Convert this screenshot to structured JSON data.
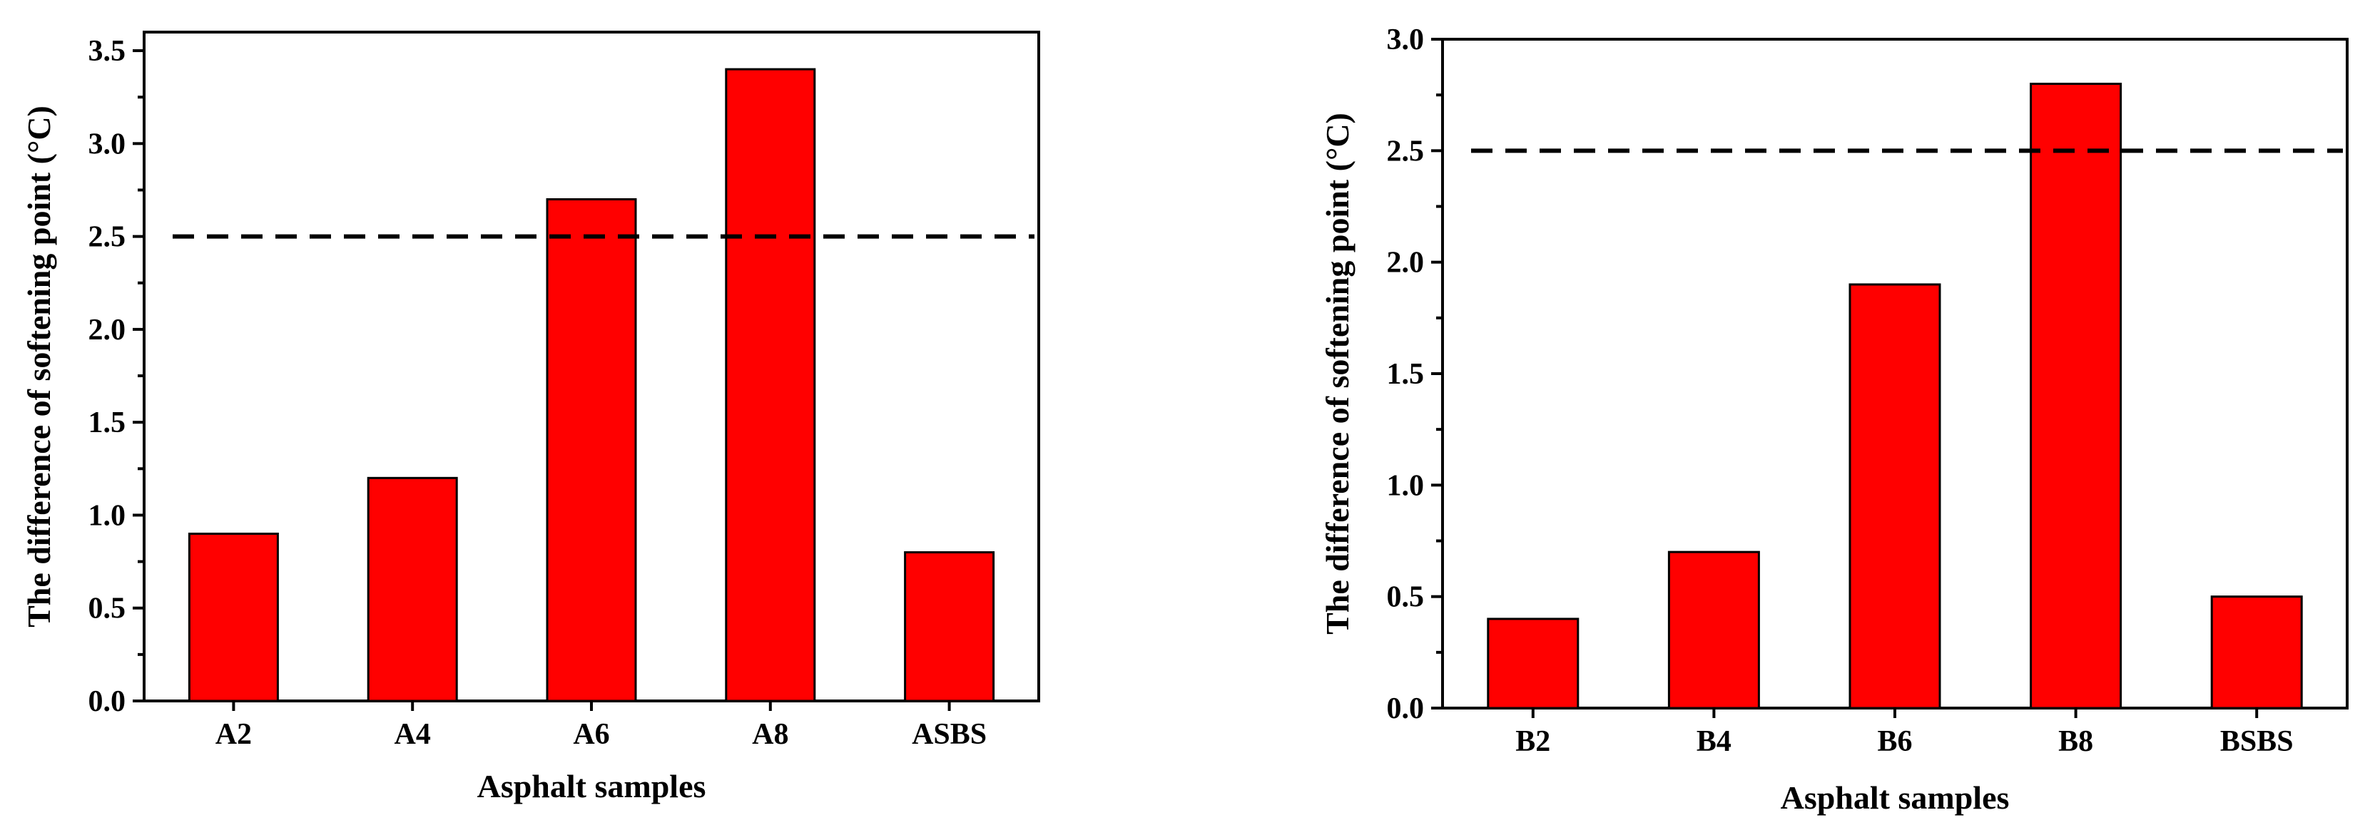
{
  "chart_data": [
    {
      "type": "bar",
      "categories": [
        "A2",
        "A4",
        "A6",
        "A8",
        "ASBS"
      ],
      "values": [
        0.9,
        1.2,
        2.7,
        3.4,
        0.8
      ],
      "xlabel": "Asphalt samples",
      "ylabel": "The difference of softening point (°C)",
      "ylim": [
        0,
        3.6
      ],
      "yticks": [
        "0.0",
        "0.5",
        "1.0",
        "1.5",
        "2.0",
        "2.5",
        "3.0",
        "3.5"
      ],
      "reference_line": 2.5,
      "bar_color": "#ff0000",
      "grid": false
    },
    {
      "type": "bar",
      "categories": [
        "B2",
        "B4",
        "B6",
        "B8",
        "BSBS"
      ],
      "values": [
        0.4,
        0.7,
        1.9,
        2.8,
        0.5
      ],
      "xlabel": "Asphalt samples",
      "ylabel": "The difference of softening point (°C)",
      "ylim": [
        0,
        3.0
      ],
      "yticks": [
        "0.0",
        "0.5",
        "1.0",
        "1.5",
        "2.0",
        "2.5",
        "3.0"
      ],
      "reference_line": 2.5,
      "bar_color": "#ff0000",
      "grid": false
    }
  ]
}
